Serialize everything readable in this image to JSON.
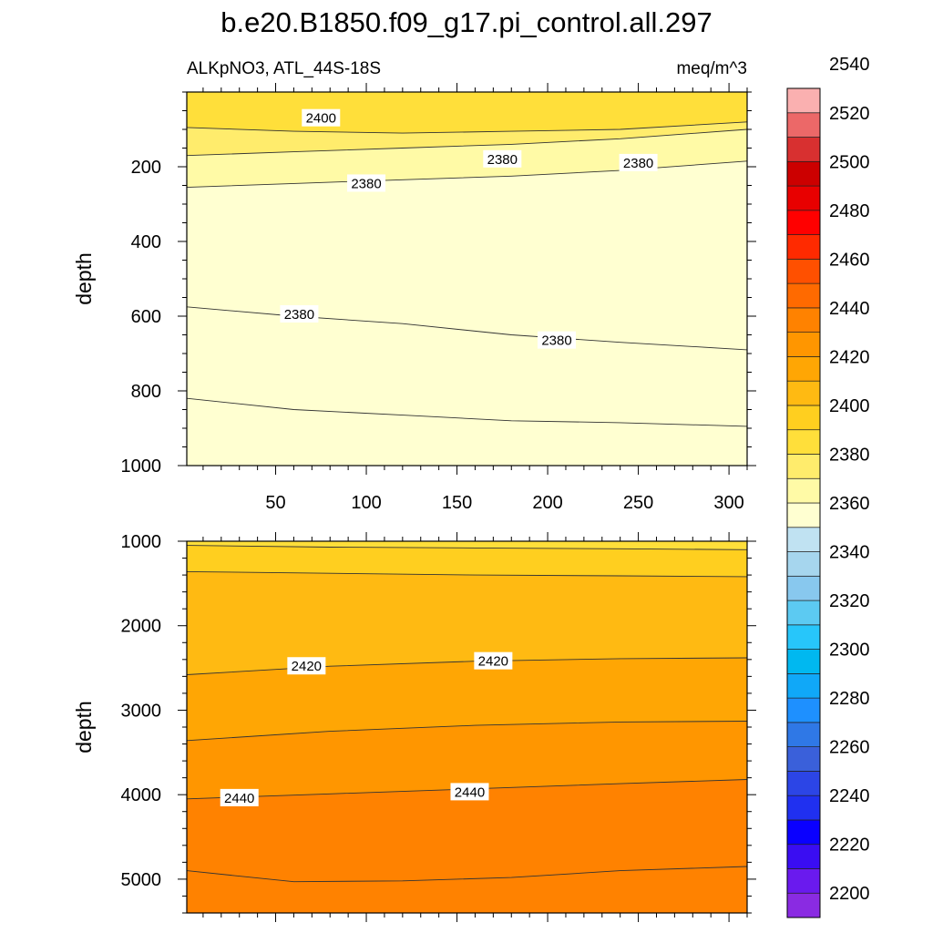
{
  "title": "b.e20.B1850.f09_g17.pi_control.all.297",
  "subtitle_left": "ALKpNO3, ATL_44S-18S",
  "subtitle_right": "meq/m^3",
  "chart_data": [
    {
      "type": "contour",
      "panel": "upper",
      "ylabel": "depth",
      "ylim": [
        0,
        1000
      ],
      "y_reversed": true,
      "xlim": [
        1,
        310
      ],
      "x_ticks": [
        50,
        100,
        150,
        200,
        250,
        300
      ],
      "x_tick_labels": [
        "50",
        "100",
        "150",
        "200",
        "250",
        "300"
      ],
      "y_ticks": [
        200,
        400,
        600,
        800,
        1000
      ],
      "y_tick_labels": [
        "200",
        "400",
        "600",
        "800",
        "1000"
      ],
      "contours": [
        {
          "level": 2400,
          "x": [
            1,
            60,
            120,
            180,
            240,
            310
          ],
          "y": [
            95,
            105,
            110,
            105,
            100,
            80
          ]
        },
        {
          "level": 2390,
          "x": [
            1,
            60,
            120,
            180,
            240,
            310
          ],
          "y": [
            170,
            160,
            150,
            140,
            125,
            100
          ]
        },
        {
          "level": 2380,
          "x": [
            1,
            60,
            120,
            180,
            240,
            310
          ],
          "y": [
            255,
            245,
            235,
            225,
            210,
            185
          ]
        },
        {
          "level": 2380,
          "x": [
            1,
            60,
            120,
            180,
            240,
            310
          ],
          "y": [
            575,
            600,
            620,
            650,
            670,
            690
          ]
        },
        {
          "level": 2390,
          "x": [
            1,
            60,
            120,
            180,
            240,
            310
          ],
          "y": [
            820,
            850,
            865,
            880,
            885,
            895
          ]
        }
      ],
      "contour_labels": [
        {
          "text": "2400",
          "x": 75,
          "y": 70
        },
        {
          "text": "2380",
          "x": 100,
          "y": 245
        },
        {
          "text": "2380",
          "x": 175,
          "y": 180
        },
        {
          "text": "2380",
          "x": 250,
          "y": 190
        },
        {
          "text": "2380",
          "x": 63,
          "y": 595
        },
        {
          "text": "2380",
          "x": 205,
          "y": 665
        }
      ],
      "fill_bands": [
        {
          "level": 2400,
          "color": "#FFDF3A"
        },
        {
          "level": 2390,
          "color": "#FFEC6C"
        },
        {
          "level": 2380,
          "color": "#FFFAA6"
        },
        {
          "level": 2370,
          "color": "#FFFFD1"
        }
      ]
    },
    {
      "type": "contour",
      "panel": "lower",
      "ylabel": "depth",
      "ylim": [
        1000,
        5400
      ],
      "y_reversed": true,
      "xlim": [
        1,
        310
      ],
      "x_ticks": [
        50,
        100,
        150,
        200,
        250,
        300
      ],
      "y_ticks": [
        1000,
        2000,
        3000,
        4000,
        5000
      ],
      "y_tick_labels": [
        "1000",
        "2000",
        "3000",
        "4000",
        "5000"
      ],
      "contours": [
        {
          "level": 2400,
          "x": [
            1,
            80,
            160,
            240,
            310
          ],
          "y": [
            1050,
            1070,
            1080,
            1090,
            1100
          ]
        },
        {
          "level": 2410,
          "x": [
            1,
            80,
            160,
            240,
            310
          ],
          "y": [
            1360,
            1380,
            1400,
            1410,
            1420
          ]
        },
        {
          "level": 2420,
          "x": [
            1,
            80,
            160,
            240,
            310
          ],
          "y": [
            2580,
            2480,
            2420,
            2390,
            2380
          ]
        },
        {
          "level": 2430,
          "x": [
            1,
            80,
            160,
            240,
            310
          ],
          "y": [
            3360,
            3250,
            3180,
            3140,
            3130
          ]
        },
        {
          "level": 2440,
          "x": [
            1,
            80,
            160,
            240,
            310
          ],
          "y": [
            4050,
            3990,
            3930,
            3870,
            3820
          ]
        },
        {
          "level": 2450,
          "x": [
            1,
            60,
            120,
            180,
            240,
            310
          ],
          "y": [
            4900,
            5030,
            5020,
            4980,
            4900,
            4850
          ]
        }
      ],
      "contour_labels": [
        {
          "text": "2420",
          "x": 67,
          "y": 2480
        },
        {
          "text": "2420",
          "x": 170,
          "y": 2420
        },
        {
          "text": "2440",
          "x": 30,
          "y": 4040
        },
        {
          "text": "2440",
          "x": 157,
          "y": 3970
        }
      ],
      "fill_bands": [
        {
          "level": 2400,
          "color": "#FFDF3A"
        },
        {
          "level": 2410,
          "color": "#FFCF1F"
        },
        {
          "level": 2420,
          "color": "#FFBA12"
        },
        {
          "level": 2430,
          "color": "#FFA604"
        },
        {
          "level": 2440,
          "color": "#FF9600"
        },
        {
          "level": 2450,
          "color": "#FF8200"
        }
      ]
    }
  ],
  "colorbar": {
    "tick_labels": [
      "2200",
      "2220",
      "2240",
      "2260",
      "2280",
      "2300",
      "2320",
      "2340",
      "2360",
      "2380",
      "2400",
      "2420",
      "2440",
      "2460",
      "2480",
      "2500",
      "2520",
      "2540"
    ],
    "colors": [
      "#8A2BE2",
      "#6A1AEE",
      "#3A0DF2",
      "#0A00FF",
      "#2030F0",
      "#2C45E6",
      "#3A60DA",
      "#2F78E6",
      "#1E90FF",
      "#10A8F8",
      "#00B8F0",
      "#27C6FA",
      "#5CCAF2",
      "#88C8EE",
      "#A6D6EE",
      "#C0E2F2",
      "#FFFFD1",
      "#FFFAA6",
      "#FFEC6C",
      "#FFDF3A",
      "#FFCF1F",
      "#FFBA12",
      "#FFA604",
      "#FF9600",
      "#FF8200",
      "#FF6A00",
      "#FF5000",
      "#FF2A00",
      "#FF0000",
      "#E80000",
      "#CC0000",
      "#D83030",
      "#EC6868",
      "#FAB0B0"
    ]
  }
}
